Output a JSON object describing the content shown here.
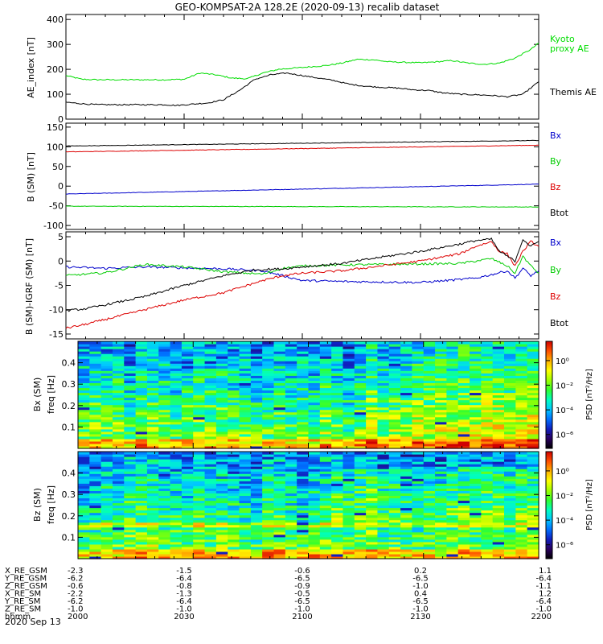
{
  "title": "GEO-KOMPSAT-2A 128.2E (2020-09-13) recalib dataset",
  "x_axis": {
    "ticks_hhmm": [
      "2000",
      "2030",
      "2100",
      "2130",
      "2200"
    ],
    "minutes": [
      0,
      30,
      60,
      90,
      120
    ],
    "label": "hhmm",
    "date": "2020 Sep 13"
  },
  "ephemeris": {
    "rows": [
      {
        "label": "X_RE_GSM",
        "values": [
          "-2.3",
          "-1.5",
          "-0.6",
          "0.2",
          "1.1"
        ]
      },
      {
        "label": "Y_RE_GSM",
        "values": [
          "-6.2",
          "-6.4",
          "-6.5",
          "-6.5",
          "-6.4"
        ]
      },
      {
        "label": "Z_RE_GSM",
        "values": [
          "-0.6",
          "-0.8",
          "-0.9",
          "-1.0",
          "-1.1"
        ]
      },
      {
        "label": "X_RE_SM",
        "values": [
          "-2.2",
          "-1.3",
          "-0.5",
          "0.4",
          "1.2"
        ]
      },
      {
        "label": "Y_RE_SM",
        "values": [
          "-6.2",
          "-6.4",
          "-6.5",
          "-6.5",
          "-6.4"
        ]
      },
      {
        "label": "Z_RE_SM",
        "values": [
          "-1.0",
          "-1.0",
          "-1.0",
          "-1.0",
          "-1.0"
        ]
      }
    ]
  },
  "colorbar": {
    "label": "PSD [nT²/Hz]",
    "ticks": [
      "10⁰",
      "10⁻²",
      "10⁻⁴",
      "10⁻⁶"
    ],
    "stops": [
      "#000000",
      "#2a0060",
      "#1020c0",
      "#0070ff",
      "#00c8ff",
      "#00ffc0",
      "#30ff30",
      "#a0ff00",
      "#ffff00",
      "#ffb000",
      "#ff5000",
      "#d00000"
    ]
  },
  "chart_data": [
    {
      "type": "line",
      "title": "",
      "ylabel": "AE_index [nT]",
      "xlim": [
        0,
        120
      ],
      "ylim": [
        0,
        420
      ],
      "yticks": [
        0,
        100,
        200,
        300,
        400
      ],
      "series": [
        {
          "name": "Kyoto proxy AE",
          "legend": [
            "Kyoto",
            "proxy AE"
          ],
          "color": "#00dd00",
          "x": [
            0,
            4,
            8,
            14,
            20,
            25,
            30,
            34,
            38,
            42,
            46,
            50,
            54,
            58,
            62,
            66,
            70,
            74,
            78,
            82,
            86,
            90,
            94,
            98,
            102,
            106,
            110,
            114,
            118,
            120
          ],
          "y": [
            175,
            160,
            158,
            158,
            158,
            158,
            160,
            185,
            178,
            165,
            162,
            185,
            200,
            205,
            210,
            215,
            225,
            240,
            238,
            230,
            228,
            226,
            230,
            235,
            225,
            220,
            225,
            245,
            280,
            305
          ]
        },
        {
          "name": "Themis AE",
          "legend": [
            "Themis AE"
          ],
          "color": "#000000",
          "x": [
            0,
            4,
            8,
            14,
            20,
            25,
            28,
            32,
            36,
            40,
            44,
            48,
            52,
            56,
            60,
            64,
            68,
            72,
            76,
            80,
            84,
            88,
            92,
            96,
            100,
            104,
            108,
            112,
            116,
            120
          ],
          "y": [
            68,
            62,
            58,
            58,
            58,
            58,
            55,
            60,
            65,
            78,
            115,
            160,
            178,
            185,
            175,
            165,
            155,
            140,
            132,
            128,
            125,
            118,
            115,
            105,
            100,
            98,
            95,
            90,
            100,
            150
          ]
        }
      ]
    },
    {
      "type": "line",
      "title": "",
      "ylabel": "B (SM) [nT]",
      "xlim": [
        0,
        120
      ],
      "ylim": [
        -110,
        160
      ],
      "yticks": [
        -100,
        -50,
        0,
        50,
        100,
        150
      ],
      "series": [
        {
          "name": "Bx",
          "legend": [
            "Bx"
          ],
          "color": "#0000cc",
          "x": [
            0,
            120
          ],
          "y": [
            -20,
            5
          ]
        },
        {
          "name": "By",
          "legend": [
            "By"
          ],
          "color": "#00cc00",
          "x": [
            0,
            120
          ],
          "y": [
            -51,
            -53
          ]
        },
        {
          "name": "Bz",
          "legend": [
            "Bz"
          ],
          "color": "#dd0000",
          "x": [
            0,
            120
          ],
          "y": [
            87,
            104
          ]
        },
        {
          "name": "Btot",
          "legend": [
            "Btot"
          ],
          "color": "#000000",
          "x": [
            0,
            120
          ],
          "y": [
            102,
            116
          ]
        }
      ]
    },
    {
      "type": "line",
      "title": "",
      "ylabel": "B (SM)-IGRF (SM) [nT]",
      "xlim": [
        0,
        120
      ],
      "ylim": [
        -16,
        6
      ],
      "yticks": [
        -15,
        -10,
        -5,
        0,
        5
      ],
      "series": [
        {
          "name": "Bx",
          "legend": [
            "Bx"
          ],
          "color": "#0000cc",
          "x": [
            0,
            10,
            20,
            30,
            40,
            50,
            55,
            60,
            70,
            80,
            90,
            100,
            104,
            108,
            112,
            114,
            116,
            118,
            120
          ],
          "y": [
            -1.2,
            -1.5,
            -1.2,
            -1.4,
            -1.6,
            -2,
            -3,
            -4,
            -4.2,
            -4.3,
            -4.4,
            -3.8,
            -3.5,
            -2.8,
            -2,
            -3.5,
            -1.5,
            -3,
            -2
          ]
        },
        {
          "name": "By",
          "legend": [
            "By"
          ],
          "color": "#00cc00",
          "x": [
            0,
            10,
            20,
            30,
            40,
            50,
            55,
            60,
            70,
            80,
            90,
            100,
            104,
            108,
            112,
            114,
            116,
            118,
            120
          ],
          "y": [
            -3,
            -2.4,
            -0.7,
            -1.2,
            -2.2,
            -2.7,
            -1.5,
            -1,
            -0.8,
            -0.7,
            -0.6,
            -0.5,
            0,
            0.5,
            -1,
            -2.5,
            1,
            -1,
            -2.5
          ]
        },
        {
          "name": "Bz",
          "legend": [
            "Bz"
          ],
          "color": "#dd0000",
          "x": [
            0,
            5,
            10,
            20,
            30,
            40,
            50,
            55,
            60,
            70,
            80,
            90,
            100,
            104,
            108,
            110,
            112,
            114,
            116,
            118,
            120
          ],
          "y": [
            -13.8,
            -13,
            -12,
            -10,
            -8,
            -6.5,
            -4,
            -3,
            -2.5,
            -2,
            -1,
            0,
            1.5,
            3,
            4,
            2,
            1.5,
            -1,
            2,
            4,
            3
          ]
        },
        {
          "name": "Btot",
          "legend": [
            "Btot"
          ],
          "color": "#000000",
          "x": [
            0,
            5,
            10,
            20,
            30,
            40,
            48,
            55,
            60,
            70,
            80,
            90,
            100,
            104,
            108,
            110,
            112,
            114,
            116,
            118,
            120
          ],
          "y": [
            -10.2,
            -9.8,
            -9,
            -7.3,
            -5,
            -3,
            -1.8,
            -1.6,
            -1.2,
            -0.5,
            0.8,
            2,
            3.5,
            4.2,
            4.5,
            2,
            1,
            0,
            4.5,
            3,
            4
          ]
        }
      ]
    },
    {
      "type": "heatmap",
      "title": "",
      "panel": "Bx (SM)",
      "ylabel": "freq [Hz]",
      "xlim": [
        0,
        120
      ],
      "ylim": [
        0,
        0.5
      ],
      "yticks": [
        0.1,
        0.2,
        0.3,
        0.4
      ],
      "z_scale": "log PSD, 10⁻⁸ to 10¹"
    },
    {
      "type": "heatmap",
      "title": "",
      "panel": "Bz (SM)",
      "ylabel": "freq [Hz]",
      "xlim": [
        0,
        120
      ],
      "ylim": [
        0,
        0.5
      ],
      "yticks": [
        0.1,
        0.2,
        0.3,
        0.4
      ],
      "z_scale": "log PSD, 10⁻⁸ to 10¹"
    }
  ]
}
